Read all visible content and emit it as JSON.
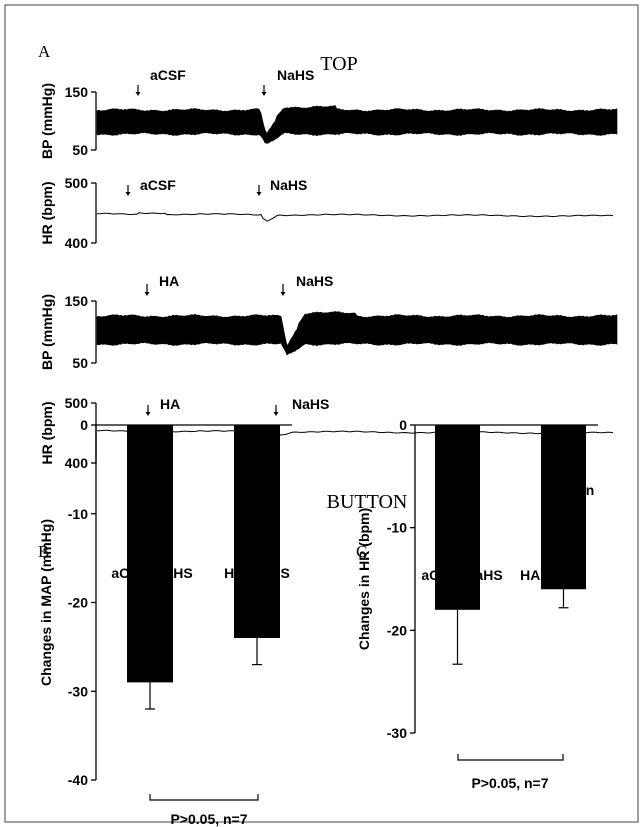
{
  "figure": {
    "panel_letters": {
      "a": "A",
      "b": "B",
      "c": "C"
    },
    "top_label": "TOP",
    "bottom_label": "BUTTON",
    "scale_bar_label": "2 min"
  },
  "chart_data": [
    {
      "id": "trace-top-bp",
      "type": "line",
      "ylabel": "BP (mmHg)",
      "yticks": [
        50,
        150
      ],
      "ylim": [
        50,
        150
      ],
      "markers": [
        "aCSF",
        "NaHS"
      ]
    },
    {
      "id": "trace-top-hr",
      "type": "line",
      "ylabel": "HR (bpm)",
      "yticks": [
        400,
        500
      ],
      "ylim": [
        400,
        500
      ],
      "markers": [
        "aCSF",
        "NaHS"
      ]
    },
    {
      "id": "trace-bottom-bp",
      "type": "line",
      "ylabel": "BP (mmHg)",
      "yticks": [
        50,
        150
      ],
      "ylim": [
        50,
        150
      ],
      "markers": [
        "HA",
        "NaHS"
      ]
    },
    {
      "id": "trace-bottom-hr",
      "type": "line",
      "ylabel": "HR (bpm)",
      "yticks": [
        400,
        500
      ],
      "ylim": [
        400,
        500
      ],
      "markers": [
        "HA",
        "NaHS"
      ]
    },
    {
      "id": "bar-map",
      "type": "bar",
      "categories": [
        "aCSF+NaHS",
        "HA+NaHS"
      ],
      "values": [
        -29,
        -24
      ],
      "errors": [
        3,
        3
      ],
      "ylabel": "Changes in MAP (mmHg)",
      "yticks": [
        0,
        -10,
        -20,
        -30,
        -40
      ],
      "ylim": [
        -40,
        0
      ],
      "stat_text": "P>0.05, n=7"
    },
    {
      "id": "bar-hr",
      "type": "bar",
      "categories": [
        "aCSF+NaHS",
        "HA+NaHS"
      ],
      "values": [
        -18,
        -16
      ],
      "errors": [
        5.3,
        1.8
      ],
      "ylabel": "Changes in HR (bpm)",
      "yticks": [
        0,
        -10,
        -20,
        -30
      ],
      "ylim": [
        -30,
        0
      ],
      "stat_text": "P>0.05, n=7"
    }
  ]
}
